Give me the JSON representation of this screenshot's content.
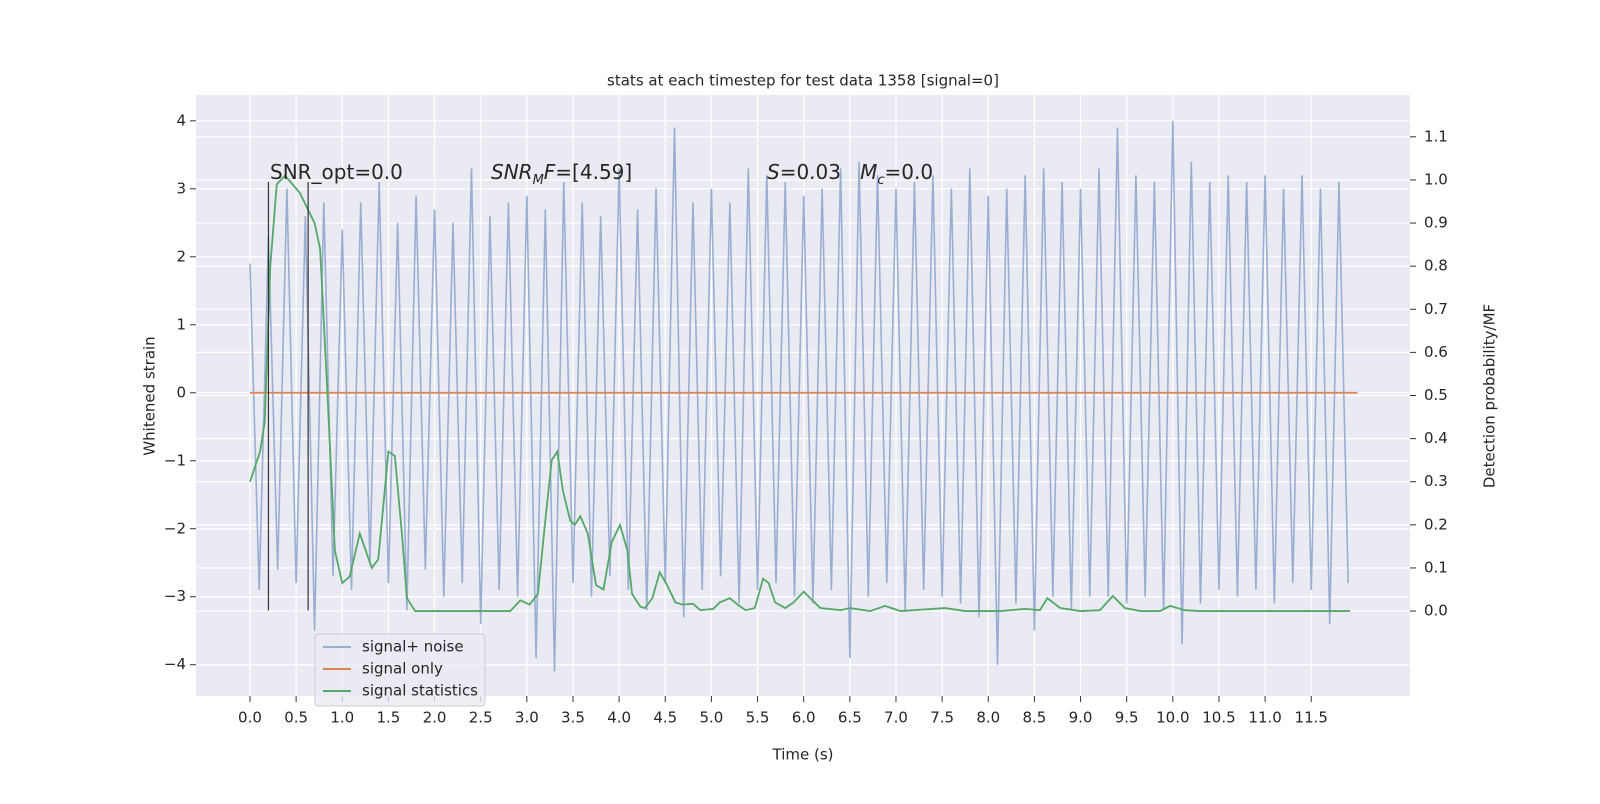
{
  "chart_data": {
    "type": "line",
    "title": "stats at each timestep for test data 1358 [signal=0]",
    "x_label": "Time (s)",
    "y_label": "Whitened strain",
    "y2_label": "Detection probability/MF",
    "xlim": [
      -0.585,
      12.57
    ],
    "ylim": [
      -4.46,
      4.38
    ],
    "y2lim": [
      -0.197,
      1.197
    ],
    "xticks": [
      {
        "value": 0,
        "label": "0.0"
      },
      0.5,
      {
        "value": 1,
        "label": "1.0"
      },
      1.5,
      {
        "value": 2,
        "label": "2.0"
      },
      2.5,
      {
        "value": 3,
        "label": "3.0"
      },
      3.5,
      {
        "value": 4,
        "label": "4.0"
      },
      4.5,
      {
        "value": 5,
        "label": "5.0"
      },
      5.5,
      {
        "value": 6,
        "label": "6.0"
      },
      6.5,
      {
        "value": 7,
        "label": "7.0"
      },
      7.5,
      {
        "value": 8,
        "label": "8.0"
      },
      8.5,
      {
        "value": 9,
        "label": "9.0"
      },
      9.5,
      {
        "value": 10,
        "label": "10.0"
      },
      10.5,
      {
        "value": 11,
        "label": "11.0"
      },
      11.5
    ],
    "yticks": [
      {
        "value": -4,
        "label": "−4"
      },
      {
        "value": -3,
        "label": "−3"
      },
      {
        "value": -2,
        "label": "−2"
      },
      {
        "value": -1,
        "label": "−1"
      },
      0,
      1,
      2,
      3,
      4
    ],
    "y2ticks": [
      {
        "value": 0,
        "label": "0.0"
      },
      0.1,
      0.2,
      0.3,
      0.4,
      0.5,
      0.6,
      0.7,
      0.8,
      0.9,
      {
        "value": 1,
        "label": "1.0"
      },
      1.1
    ],
    "grid": true,
    "legend": "lower left",
    "series": [
      {
        "name": "signal+ noise",
        "color": "#9aaed2",
        "x": [
          0.0,
          0.1,
          0.2,
          0.3,
          0.4,
          0.5,
          0.6,
          0.7,
          0.8,
          0.9,
          1.0,
          1.1,
          1.2,
          1.3,
          1.4,
          1.5,
          1.6,
          1.7,
          1.8,
          1.9,
          2.0,
          2.1,
          2.2,
          2.3,
          2.4,
          2.5,
          2.6,
          2.7,
          2.8,
          2.9,
          3.0,
          3.1,
          3.2,
          3.3,
          3.4,
          3.5,
          3.6,
          3.7,
          3.8,
          3.9,
          4.0,
          4.1,
          4.2,
          4.3,
          4.4,
          4.5,
          4.6,
          4.7,
          4.8,
          4.9,
          5.0,
          5.1,
          5.2,
          5.3,
          5.4,
          5.5,
          5.6,
          5.7,
          5.8,
          5.9,
          6.0,
          6.1,
          6.2,
          6.3,
          6.4,
          6.5,
          6.6,
          6.7,
          6.8,
          6.9,
          7.0,
          7.1,
          7.2,
          7.3,
          7.4,
          7.5,
          7.6,
          7.7,
          7.8,
          7.9,
          8.0,
          8.1,
          8.2,
          8.3,
          8.4,
          8.5,
          8.6,
          8.7,
          8.8,
          8.9,
          9.0,
          9.1,
          9.2,
          9.3,
          9.4,
          9.5,
          9.6,
          9.7,
          9.8,
          9.9,
          10.0,
          10.1,
          10.2,
          10.3,
          10.4,
          10.5,
          10.6,
          10.7,
          10.8,
          10.9,
          11.0,
          11.1,
          11.2,
          11.3,
          11.4,
          11.5,
          11.6,
          11.7,
          11.8,
          11.9
        ],
        "values": [
          1.9,
          -2.9,
          2.3,
          -2.6,
          3.0,
          -2.8,
          2.6,
          -3.5,
          2.8,
          -2.7,
          2.4,
          -2.9,
          2.8,
          -2.5,
          3.1,
          -2.8,
          2.5,
          -3.2,
          2.9,
          -2.6,
          2.7,
          -3.0,
          2.5,
          -2.8,
          3.3,
          -3.4,
          2.6,
          -2.9,
          2.8,
          -3.0,
          2.9,
          -3.9,
          2.7,
          -4.1,
          3.1,
          -2.8,
          2.8,
          -3.0,
          2.6,
          -2.7,
          3.3,
          -2.9,
          2.7,
          -3.2,
          3.0,
          -2.8,
          3.9,
          -3.3,
          2.8,
          -2.9,
          3.0,
          -2.7,
          2.8,
          -3.1,
          3.3,
          -2.9,
          3.2,
          -2.8,
          3.1,
          -3.0,
          2.9,
          -3.1,
          3.0,
          -2.9,
          3.3,
          -3.9,
          3.4,
          -3.0,
          3.2,
          -2.8,
          3.0,
          -3.2,
          3.1,
          -2.9,
          3.2,
          -3.0,
          3.0,
          -3.1,
          3.3,
          -3.3,
          2.9,
          -4.0,
          3.0,
          -3.1,
          3.2,
          -3.5,
          3.3,
          -3.0,
          3.1,
          -3.2,
          3.0,
          -3.0,
          3.3,
          -3.0,
          3.9,
          -3.1,
          3.2,
          -3.0,
          3.1,
          -3.2,
          4.0,
          -3.7,
          3.4,
          -3.1,
          3.1,
          -2.9,
          3.2,
          -3.0,
          3.1,
          -2.9,
          3.2,
          -3.1,
          3.0,
          -2.8,
          3.2,
          -2.9,
          3.0,
          -3.4,
          3.1,
          -2.8
        ]
      },
      {
        "name": "signal only",
        "color": "#dd8452",
        "x": [
          0,
          12
        ],
        "values": [
          0,
          0
        ]
      },
      {
        "name": "signal statistics",
        "color": "#55a868",
        "axis": "y2",
        "x": [
          0,
          0.11,
          0.16,
          0.22,
          0.29,
          0.38,
          0.54,
          0.7,
          0.76,
          0.84,
          0.92,
          1.0,
          1.08,
          1.19,
          1.32,
          1.39,
          1.5,
          1.57,
          1.65,
          1.7,
          1.79,
          2.38,
          2.82,
          2.93,
          3.03,
          3.12,
          3.2,
          3.27,
          3.33,
          3.39,
          3.47,
          3.52,
          3.58,
          3.66,
          3.75,
          3.83,
          3.92,
          4.01,
          4.09,
          4.14,
          4.23,
          4.28,
          4.36,
          4.44,
          4.52,
          4.61,
          4.69,
          4.8,
          4.88,
          5.02,
          5.09,
          5.2,
          5.29,
          5.37,
          5.47,
          5.56,
          5.62,
          5.69,
          5.8,
          5.89,
          6.0,
          6.07,
          6.18,
          6.4,
          6.5,
          6.72,
          6.88,
          7.05,
          7.53,
          7.75,
          8.13,
          8.4,
          8.56,
          8.64,
          8.78,
          9.0,
          9.21,
          9.35,
          9.48,
          9.65,
          9.86,
          9.97,
          10.13,
          10.3,
          11.92
        ],
        "values": [
          0.3,
          0.37,
          0.44,
          0.8,
          0.99,
          1.01,
          0.97,
          0.9,
          0.84,
          0.5,
          0.14,
          0.065,
          0.08,
          0.18,
          0.1,
          0.12,
          0.37,
          0.36,
          0.17,
          0.03,
          0,
          0,
          0,
          0.025,
          0.015,
          0.04,
          0.21,
          0.35,
          0.37,
          0.28,
          0.21,
          0.2,
          0.22,
          0.18,
          0.06,
          0.05,
          0.16,
          0.2,
          0.14,
          0.04,
          0.01,
          0.007,
          0.03,
          0.09,
          0.06,
          0.02,
          0.015,
          0.017,
          0.002,
          0.005,
          0.02,
          0.03,
          0.014,
          0.002,
          0.007,
          0.075,
          0.065,
          0.02,
          0.007,
          0.02,
          0.045,
          0.03,
          0.007,
          0.002,
          0.007,
          0,
          0.012,
          0,
          0.007,
          0,
          0,
          0.005,
          0.002,
          0.03,
          0.007,
          0,
          0.002,
          0.035,
          0.007,
          0,
          0,
          0.012,
          0.002,
          0,
          0
        ]
      }
    ],
    "vlines": {
      "x": [
        0.2,
        0.63
      ],
      "ymin": -3.2,
      "ymax": 3.1,
      "color": "#333333"
    },
    "annotations": [
      {
        "segments": [
          {
            "text": "SNR_opt=0.0"
          }
        ]
      },
      {
        "segments": [
          {
            "text": "SNR",
            "style": "italic"
          },
          {
            "text": "M",
            "style": "sub"
          },
          {
            "text": "F",
            "style": "italic"
          },
          {
            "text": "=[4.59]"
          }
        ]
      },
      {
        "segments": [
          {
            "text": "S",
            "style": "italic"
          },
          {
            "text": "=0.03   "
          },
          {
            "text": "M",
            "style": "italic"
          },
          {
            "text": "c",
            "style": "sub"
          },
          {
            "text": "=0.0"
          }
        ]
      }
    ]
  }
}
